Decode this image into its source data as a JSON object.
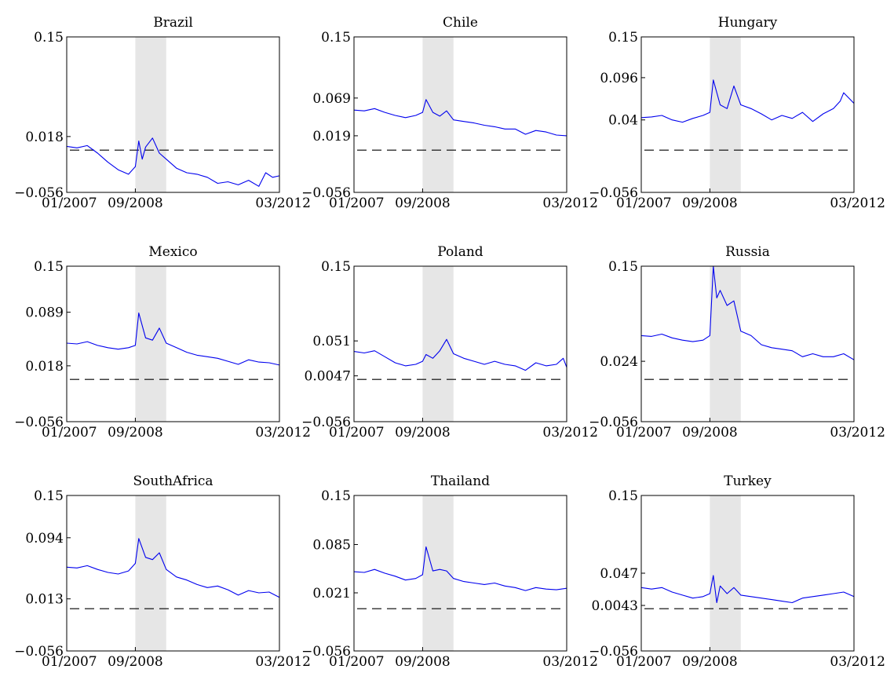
{
  "figure": {
    "colors": {
      "series": "#0000ee",
      "band": "#e6e6e6",
      "zero_line": "#000000"
    }
  },
  "chart_data": [
    {
      "type": "line",
      "title": "Brazil",
      "xlim": [
        "01/2007",
        "03/2012"
      ],
      "xticks": [
        "01/2007",
        "09/2008",
        "03/2012"
      ],
      "ylim": [
        -0.056,
        0.15
      ],
      "yticks": [
        "-0.056",
        "0.018",
        "0.15"
      ],
      "shaded_period": [
        "09/2008",
        "06/2009"
      ],
      "reference_line_y": 0,
      "series": [
        {
          "x": [
            "01/2007",
            "04/2007",
            "07/2007",
            "10/2007",
            "01/2008",
            "04/2008",
            "07/2008",
            "09/2008",
            "10/2008",
            "11/2008",
            "12/2008",
            "02/2009",
            "04/2009",
            "06/2009",
            "09/2009",
            "12/2009",
            "03/2010",
            "06/2010",
            "09/2010",
            "12/2010",
            "03/2011",
            "06/2011",
            "09/2011",
            "11/2011",
            "01/2012",
            "03/2012"
          ],
          "y": [
            0.005,
            0.003,
            0.006,
            -0.004,
            -0.016,
            -0.026,
            -0.032,
            -0.022,
            0.012,
            -0.012,
            0.004,
            0.016,
            -0.004,
            -0.012,
            -0.024,
            -0.03,
            -0.032,
            -0.036,
            -0.044,
            -0.042,
            -0.046,
            -0.04,
            -0.048,
            -0.03,
            -0.036,
            -0.034
          ]
        }
      ]
    },
    {
      "type": "line",
      "title": "Chile",
      "xlim": [
        "01/2007",
        "03/2012"
      ],
      "xticks": [
        "01/2007",
        "09/2008",
        "03/2012"
      ],
      "ylim": [
        -0.056,
        0.15
      ],
      "yticks": [
        "-0.056",
        "0.019",
        "0.069",
        "0.15"
      ],
      "shaded_period": [
        "09/2008",
        "06/2009"
      ],
      "reference_line_y": 0,
      "series": [
        {
          "x": [
            "01/2007",
            "04/2007",
            "07/2007",
            "10/2007",
            "01/2008",
            "04/2008",
            "07/2008",
            "09/2008",
            "10/2008",
            "12/2008",
            "02/2009",
            "04/2009",
            "06/2009",
            "09/2009",
            "12/2009",
            "03/2010",
            "06/2010",
            "09/2010",
            "12/2010",
            "03/2011",
            "06/2011",
            "09/2011",
            "12/2011",
            "03/2012"
          ],
          "y": [
            0.053,
            0.052,
            0.055,
            0.05,
            0.046,
            0.043,
            0.046,
            0.05,
            0.067,
            0.05,
            0.045,
            0.052,
            0.04,
            0.038,
            0.036,
            0.033,
            0.031,
            0.028,
            0.028,
            0.021,
            0.026,
            0.024,
            0.02,
            0.019
          ]
        }
      ]
    },
    {
      "type": "line",
      "title": "Hungary",
      "xlim": [
        "01/2007",
        "03/2012"
      ],
      "xticks": [
        "01/2007",
        "09/2008",
        "03/2012"
      ],
      "ylim": [
        -0.056,
        0.15
      ],
      "yticks": [
        "-0.056",
        "0.04",
        "0.096",
        "0.15"
      ],
      "shaded_period": [
        "09/2008",
        "06/2009"
      ],
      "reference_line_y": 0,
      "series": [
        {
          "x": [
            "01/2007",
            "04/2007",
            "07/2007",
            "10/2007",
            "01/2008",
            "04/2008",
            "07/2008",
            "09/2008",
            "10/2008",
            "12/2008",
            "02/2009",
            "04/2009",
            "06/2009",
            "09/2009",
            "12/2009",
            "03/2010",
            "06/2010",
            "09/2010",
            "12/2010",
            "03/2011",
            "06/2011",
            "09/2011",
            "11/2011",
            "12/2011",
            "03/2012"
          ],
          "y": [
            0.043,
            0.044,
            0.046,
            0.04,
            0.037,
            0.042,
            0.046,
            0.05,
            0.093,
            0.06,
            0.055,
            0.085,
            0.06,
            0.055,
            0.048,
            0.04,
            0.046,
            0.042,
            0.05,
            0.038,
            0.048,
            0.055,
            0.065,
            0.076,
            0.062
          ]
        }
      ]
    },
    {
      "type": "line",
      "title": "Mexico",
      "xlim": [
        "01/2007",
        "03/2012"
      ],
      "xticks": [
        "01/2007",
        "09/2008",
        "03/2012"
      ],
      "ylim": [
        -0.056,
        0.15
      ],
      "yticks": [
        "-0.056",
        "0.018",
        "0.089",
        "0.15"
      ],
      "shaded_period": [
        "09/2008",
        "06/2009"
      ],
      "reference_line_y": 0,
      "series": [
        {
          "x": [
            "01/2007",
            "04/2007",
            "07/2007",
            "10/2007",
            "01/2008",
            "04/2008",
            "07/2008",
            "09/2008",
            "10/2008",
            "12/2008",
            "02/2009",
            "04/2009",
            "06/2009",
            "09/2009",
            "12/2009",
            "03/2010",
            "06/2010",
            "09/2010",
            "12/2010",
            "03/2011",
            "06/2011",
            "09/2011",
            "12/2011",
            "03/2012"
          ],
          "y": [
            0.048,
            0.047,
            0.05,
            0.045,
            0.042,
            0.04,
            0.042,
            0.045,
            0.088,
            0.055,
            0.052,
            0.068,
            0.048,
            0.042,
            0.036,
            0.032,
            0.03,
            0.028,
            0.024,
            0.02,
            0.026,
            0.023,
            0.022,
            0.019
          ]
        }
      ]
    },
    {
      "type": "line",
      "title": "Poland",
      "xlim": [
        "01/2007",
        "03/2012"
      ],
      "xticks": [
        "01/2007",
        "09/2008",
        "03/2012"
      ],
      "ylim": [
        -0.056,
        0.15
      ],
      "yticks": [
        "-0.056",
        "0.0047",
        "0.051",
        "0.15"
      ],
      "shaded_period": [
        "09/2008",
        "06/2009"
      ],
      "reference_line_y": 0,
      "series": [
        {
          "x": [
            "01/2007",
            "04/2007",
            "07/2007",
            "10/2007",
            "01/2008",
            "04/2008",
            "07/2008",
            "09/2008",
            "10/2008",
            "12/2008",
            "02/2009",
            "04/2009",
            "06/2009",
            "09/2009",
            "12/2009",
            "03/2010",
            "06/2010",
            "09/2010",
            "12/2010",
            "03/2011",
            "06/2011",
            "09/2011",
            "12/2011",
            "02/2012",
            "03/2012"
          ],
          "y": [
            0.037,
            0.035,
            0.038,
            0.03,
            0.022,
            0.018,
            0.02,
            0.024,
            0.033,
            0.028,
            0.038,
            0.053,
            0.034,
            0.028,
            0.024,
            0.02,
            0.024,
            0.02,
            0.018,
            0.012,
            0.022,
            0.018,
            0.02,
            0.028,
            0.016
          ]
        }
      ]
    },
    {
      "type": "line",
      "title": "Russia",
      "xlim": [
        "01/2007",
        "03/2012"
      ],
      "xticks": [
        "01/2007",
        "09/2008",
        "03/2012"
      ],
      "ylim": [
        -0.056,
        0.15
      ],
      "yticks": [
        "-0.056",
        "0.024",
        "0.15"
      ],
      "shaded_period": [
        "09/2008",
        "06/2009"
      ],
      "reference_line_y": 0,
      "series": [
        {
          "x": [
            "01/2007",
            "04/2007",
            "07/2007",
            "10/2007",
            "01/2008",
            "04/2008",
            "07/2008",
            "09/2008",
            "10/2008",
            "11/2008",
            "12/2008",
            "02/2009",
            "04/2009",
            "06/2009",
            "09/2009",
            "12/2009",
            "03/2010",
            "06/2010",
            "09/2010",
            "12/2010",
            "03/2011",
            "06/2011",
            "09/2011",
            "12/2011",
            "03/2012"
          ],
          "y": [
            0.058,
            0.057,
            0.06,
            0.055,
            0.052,
            0.05,
            0.052,
            0.058,
            0.15,
            0.108,
            0.118,
            0.098,
            0.104,
            0.064,
            0.058,
            0.046,
            0.042,
            0.04,
            0.038,
            0.03,
            0.034,
            0.03,
            0.03,
            0.034,
            0.026
          ]
        }
      ]
    },
    {
      "type": "line",
      "title": "SouthAfrica",
      "xlim": [
        "01/2007",
        "03/2012"
      ],
      "xticks": [
        "01/2007",
        "09/2008",
        "03/2012"
      ],
      "ylim": [
        -0.056,
        0.15
      ],
      "yticks": [
        "-0.056",
        "0.013",
        "0.094",
        "0.15"
      ],
      "shaded_period": [
        "09/2008",
        "06/2009"
      ],
      "reference_line_y": 0,
      "series": [
        {
          "x": [
            "01/2007",
            "04/2007",
            "07/2007",
            "10/2007",
            "01/2008",
            "04/2008",
            "07/2008",
            "09/2008",
            "10/2008",
            "12/2008",
            "02/2009",
            "04/2009",
            "06/2009",
            "09/2009",
            "12/2009",
            "03/2010",
            "06/2010",
            "09/2010",
            "12/2010",
            "03/2011",
            "06/2011",
            "09/2011",
            "12/2011",
            "03/2012"
          ],
          "y": [
            0.055,
            0.054,
            0.057,
            0.052,
            0.048,
            0.046,
            0.05,
            0.06,
            0.093,
            0.068,
            0.065,
            0.074,
            0.052,
            0.042,
            0.038,
            0.032,
            0.028,
            0.03,
            0.025,
            0.018,
            0.024,
            0.021,
            0.022,
            0.015
          ]
        }
      ]
    },
    {
      "type": "line",
      "title": "Thailand",
      "xlim": [
        "01/2007",
        "03/2012"
      ],
      "xticks": [
        "01/2007",
        "09/2008",
        "03/2012"
      ],
      "ylim": [
        -0.056,
        0.15
      ],
      "yticks": [
        "-0.056",
        "0.021",
        "0.085",
        "0.15"
      ],
      "shaded_period": [
        "09/2008",
        "06/2009"
      ],
      "reference_line_y": 0,
      "series": [
        {
          "x": [
            "01/2007",
            "04/2007",
            "07/2007",
            "10/2007",
            "01/2008",
            "04/2008",
            "07/2008",
            "09/2008",
            "10/2008",
            "12/2008",
            "02/2009",
            "04/2009",
            "06/2009",
            "09/2009",
            "12/2009",
            "03/2010",
            "06/2010",
            "09/2010",
            "12/2010",
            "03/2011",
            "06/2011",
            "09/2011",
            "12/2011",
            "03/2012"
          ],
          "y": [
            0.049,
            0.048,
            0.052,
            0.047,
            0.043,
            0.038,
            0.04,
            0.045,
            0.082,
            0.05,
            0.052,
            0.05,
            0.04,
            0.036,
            0.034,
            0.032,
            0.034,
            0.03,
            0.028,
            0.024,
            0.028,
            0.026,
            0.025,
            0.027
          ]
        }
      ]
    },
    {
      "type": "line",
      "title": "Turkey",
      "xlim": [
        "01/2007",
        "03/2012"
      ],
      "xticks": [
        "01/2007",
        "09/2008",
        "03/2012"
      ],
      "ylim": [
        -0.056,
        0.15
      ],
      "yticks": [
        "-0.056",
        "0.0043",
        "0.047",
        "0.15"
      ],
      "shaded_period": [
        "09/2008",
        "06/2009"
      ],
      "reference_line_y": 0,
      "series": [
        {
          "x": [
            "01/2007",
            "04/2007",
            "07/2007",
            "10/2007",
            "01/2008",
            "04/2008",
            "07/2008",
            "09/2008",
            "10/2008",
            "11/2008",
            "12/2008",
            "02/2009",
            "04/2009",
            "06/2009",
            "09/2009",
            "12/2009",
            "03/2010",
            "06/2010",
            "09/2010",
            "12/2010",
            "03/2011",
            "06/2011",
            "09/2011",
            "12/2011",
            "03/2012"
          ],
          "y": [
            0.028,
            0.026,
            0.028,
            0.022,
            0.018,
            0.014,
            0.016,
            0.02,
            0.044,
            0.008,
            0.03,
            0.02,
            0.028,
            0.018,
            0.016,
            0.014,
            0.012,
            0.01,
            0.008,
            0.014,
            0.016,
            0.018,
            0.02,
            0.022,
            0.016
          ]
        }
      ]
    }
  ]
}
